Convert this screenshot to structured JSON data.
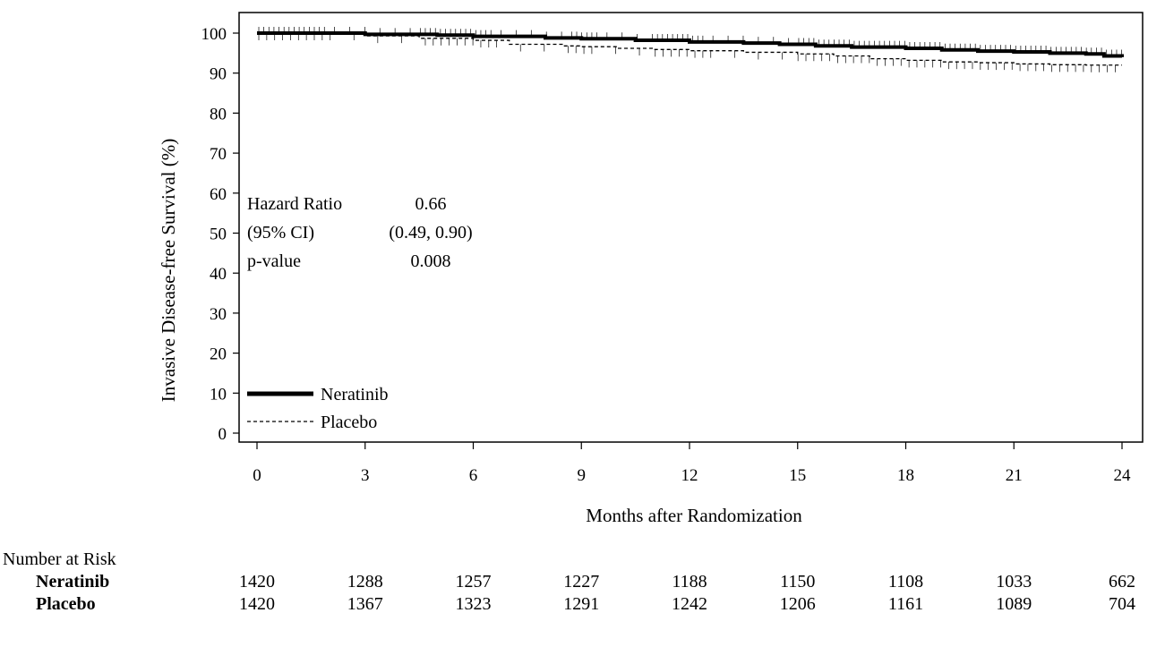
{
  "chart_data": {
    "type": "line",
    "xlabel": "Months after Randomization",
    "ylabel": "Invasive Disease-free Survival (%)",
    "xlim": [
      0,
      24
    ],
    "ylim": [
      0,
      100
    ],
    "x_ticks": [
      "0",
      "3",
      "6",
      "9",
      "12",
      "15",
      "18",
      "21",
      "24"
    ],
    "y_ticks": [
      "0",
      "10",
      "20",
      "30",
      "40",
      "50",
      "60",
      "70",
      "80",
      "90",
      "100"
    ],
    "grid": false,
    "legend_position": "bottom-left",
    "series": [
      {
        "name": "Neratinib",
        "style": "solid-thick",
        "color": "#000000",
        "points": [
          [
            0,
            100
          ],
          [
            1.5,
            100
          ],
          [
            3,
            99.7
          ],
          [
            5,
            99.5
          ],
          [
            6,
            99.2
          ],
          [
            8,
            98.8
          ],
          [
            9,
            98.6
          ],
          [
            10.5,
            98.2
          ],
          [
            12,
            97.8
          ],
          [
            13.5,
            97.5
          ],
          [
            14.5,
            97.2
          ],
          [
            15.5,
            96.8
          ],
          [
            16.5,
            96.5
          ],
          [
            18,
            96.2
          ],
          [
            19,
            95.8
          ],
          [
            20,
            95.5
          ],
          [
            21,
            95.3
          ],
          [
            22,
            95.0
          ],
          [
            23,
            94.8
          ],
          [
            23.5,
            94.3
          ],
          [
            24,
            94.0
          ]
        ]
      },
      {
        "name": "Placebo",
        "style": "dashed",
        "color": "#000000",
        "points": [
          [
            0,
            100
          ],
          [
            2,
            100
          ],
          [
            3,
            99.3
          ],
          [
            4.5,
            98.7
          ],
          [
            6,
            98.2
          ],
          [
            7,
            97.2
          ],
          [
            8.5,
            96.8
          ],
          [
            9,
            96.6
          ],
          [
            10,
            96.2
          ],
          [
            11,
            95.9
          ],
          [
            12,
            95.6
          ],
          [
            13.5,
            95.2
          ],
          [
            15,
            94.8
          ],
          [
            16,
            94.3
          ],
          [
            17,
            93.6
          ],
          [
            18,
            93.2
          ],
          [
            19,
            92.8
          ],
          [
            20,
            92.6
          ],
          [
            21,
            92.3
          ],
          [
            22,
            92.1
          ],
          [
            23,
            92.0
          ],
          [
            24,
            92.0
          ]
        ]
      }
    ],
    "annotations": {
      "rows": [
        {
          "label": "Hazard Ratio",
          "value": "0.66"
        },
        {
          "label": "(95% CI)",
          "value": "(0.49, 0.90)"
        },
        {
          "label": "p-value",
          "value": "0.008"
        }
      ]
    },
    "number_at_risk": {
      "title": "Number at Risk",
      "months": [
        0,
        3,
        6,
        9,
        12,
        15,
        18,
        21,
        24
      ],
      "rows": [
        {
          "name": "Neratinib",
          "values": [
            "1420",
            "1288",
            "1257",
            "1227",
            "1188",
            "1150",
            "1108",
            "1033",
            "662"
          ]
        },
        {
          "name": "Placebo",
          "values": [
            "1420",
            "1367",
            "1323",
            "1291",
            "1242",
            "1206",
            "1161",
            "1089",
            "704"
          ]
        }
      ]
    }
  }
}
